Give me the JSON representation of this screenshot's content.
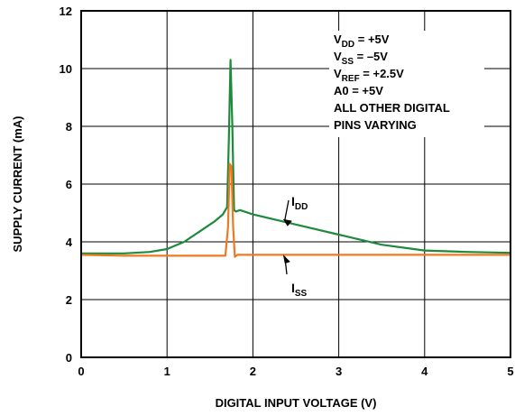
{
  "chart_data": {
    "type": "line",
    "xlabel": "DIGITAL INPUT VOLTAGE (V)",
    "ylabel": "SUPPLY CURRENT (mA)",
    "xlim": [
      0,
      5
    ],
    "ylim": [
      0,
      12
    ],
    "x_ticks": [
      "0",
      "1",
      "2",
      "3",
      "4",
      "5"
    ],
    "y_ticks": [
      "0",
      "2",
      "4",
      "6",
      "8",
      "10",
      "12"
    ],
    "grid": true,
    "annotation": [
      {
        "main": "V",
        "sub": "DD",
        "rest": " = +5V"
      },
      {
        "main": "V",
        "sub": "SS",
        "rest": " = –5V"
      },
      {
        "main": "V",
        "sub": "REF",
        "rest": " = +2.5V"
      },
      {
        "main": "A0 = +5V",
        "sub": "",
        "rest": ""
      },
      {
        "main": "ALL OTHER DIGITAL",
        "sub": "",
        "rest": ""
      },
      {
        "main": "PINS VARYING",
        "sub": "",
        "rest": ""
      }
    ],
    "series": [
      {
        "name": "IDD",
        "label_main": "I",
        "label_sub": "DD",
        "color": "#1e8a3c",
        "x": [
          0,
          0.5,
          0.8,
          1.0,
          1.2,
          1.4,
          1.55,
          1.65,
          1.7,
          1.72,
          1.74,
          1.76,
          1.78,
          1.8,
          1.85,
          2.0,
          2.5,
          3.0,
          3.5,
          4.0,
          4.5,
          5.0
        ],
        "y": [
          3.6,
          3.6,
          3.65,
          3.75,
          4.0,
          4.4,
          4.7,
          4.95,
          5.2,
          7.5,
          10.3,
          8.0,
          5.1,
          5.05,
          5.1,
          4.95,
          4.6,
          4.25,
          3.9,
          3.7,
          3.65,
          3.62
        ]
      },
      {
        "name": "ISS",
        "label_main": "I",
        "label_sub": "SS",
        "color": "#f07820",
        "x": [
          0,
          0.5,
          1.0,
          1.5,
          1.68,
          1.71,
          1.73,
          1.75,
          1.77,
          1.79,
          1.82,
          2.0,
          3.0,
          4.0,
          5.0
        ],
        "y": [
          3.55,
          3.52,
          3.52,
          3.52,
          3.52,
          4.5,
          6.7,
          6.6,
          4.5,
          3.48,
          3.55,
          3.55,
          3.55,
          3.55,
          3.55
        ]
      }
    ]
  }
}
